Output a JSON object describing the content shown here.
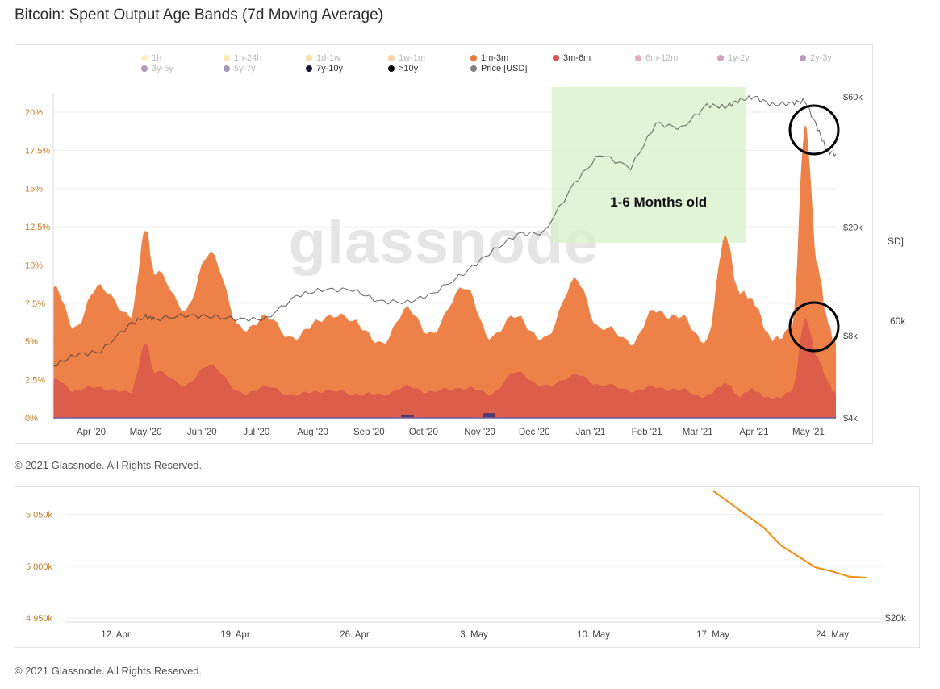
{
  "header": {
    "title": "Bitcoin: Spent Output Age Bands (7d Moving Average)"
  },
  "footer": {
    "copyright_1": "© 2021 Glassnode. All Rights Reserved.",
    "copyright_2": "© 2021 Glassnode. All Rights Reserved."
  },
  "watermark": "glassnode",
  "legend": [
    {
      "label": "1h",
      "color": "#f7e27a",
      "dim": true
    },
    {
      "label": "1h-24h",
      "color": "#f4d24a",
      "dim": true
    },
    {
      "label": "1d-1w",
      "color": "#f2b632",
      "dim": true
    },
    {
      "label": "1w-1m",
      "color": "#ef9a3a",
      "dim": true
    },
    {
      "label": "1m-3m",
      "color": "#ec7a3d",
      "dim": false
    },
    {
      "label": "3m-6m",
      "color": "#d9574c",
      "dim": false
    },
    {
      "label": "6m-12m",
      "color": "#c94760",
      "dim": true
    },
    {
      "label": "1y-2y",
      "color": "#9b2e6a",
      "dim": true
    },
    {
      "label": "2y-3y",
      "color": "#6a1f6e",
      "dim": true
    },
    {
      "label": "3y-5y",
      "color": "#55206a",
      "dim": true
    },
    {
      "label": "5y-7y",
      "color": "#2e1a55",
      "dim": true
    },
    {
      "label": "7y-10y",
      "color": "#1a1535",
      "dim": false
    },
    {
      "label": ">10y",
      "color": "#000000",
      "dim": false
    },
    {
      "label": "Price [USD]",
      "color": "#808080",
      "dim": false
    }
  ],
  "annotations": {
    "highlight_label": "1-6 Months old"
  },
  "clipped_labels": {
    "usd_fragment": "SD]",
    "price_fragment": "60k",
    "price_fragment_2": "$20k"
  },
  "chart_data": [
    {
      "type": "area",
      "title": "Bitcoin: Spent Output Age Bands (7d Moving Average)",
      "x_ticks": [
        "Apr '20",
        "May '20",
        "Jun '20",
        "Jul '20",
        "Aug '20",
        "Sep '20",
        "Oct '20",
        "Nov '20",
        "Dec '20",
        "Jan '21",
        "Feb '21",
        "Mar '21",
        "Apr '21",
        "May '21"
      ],
      "y_ticks": [
        "0%",
        "2.5%",
        "5%",
        "7.5%",
        "10%",
        "12.5%",
        "15%",
        "17.5%",
        "20%"
      ],
      "y2_ticks": [
        "$4k",
        "$8k",
        "$20k",
        "$60k"
      ],
      "ylim": [
        0,
        21
      ],
      "y2_scale": "log",
      "y2lim": [
        4000,
        60000
      ],
      "x": [
        "2020-03-20",
        "2020-04-01",
        "2020-04-15",
        "2020-05-01",
        "2020-05-10",
        "2020-05-15",
        "2020-06-01",
        "2020-06-15",
        "2020-07-01",
        "2020-07-15",
        "2020-08-01",
        "2020-08-15",
        "2020-09-01",
        "2020-09-15",
        "2020-10-01",
        "2020-10-15",
        "2020-11-01",
        "2020-11-15",
        "2020-12-01",
        "2020-12-15",
        "2021-01-01",
        "2021-01-15",
        "2021-02-01",
        "2021-02-15",
        "2021-03-01",
        "2021-03-15",
        "2021-03-25",
        "2021-04-01",
        "2021-04-10",
        "2021-04-20",
        "2021-05-01",
        "2021-05-08",
        "2021-05-15",
        "2021-05-20",
        "2021-05-25"
      ],
      "series": [
        {
          "name": "1m-3m",
          "color": "#ec7a3d",
          "values": [
            8.5,
            6.0,
            8.7,
            6.5,
            12.2,
            9.5,
            7.2,
            10.9,
            5.8,
            6.5,
            5.2,
            6.6,
            6.5,
            4.8,
            7.0,
            5.5,
            8.7,
            5.4,
            6.6,
            5.0,
            9.0,
            6.0,
            5.0,
            7.0,
            6.5,
            5.0,
            12.0,
            8.5,
            7.5,
            5.0,
            6.0,
            19.2,
            10.0,
            6.5,
            4.8
          ]
        },
        {
          "name": "3m-6m",
          "color": "#d9574c",
          "values": [
            2.5,
            1.8,
            2.0,
            1.6,
            4.8,
            3.0,
            2.2,
            3.5,
            1.6,
            2.0,
            1.5,
            1.8,
            1.6,
            1.5,
            2.0,
            1.7,
            2.0,
            1.6,
            3.0,
            2.0,
            2.8,
            2.2,
            1.8,
            2.0,
            1.8,
            1.4,
            2.3,
            1.5,
            1.8,
            1.2,
            1.8,
            6.5,
            4.0,
            2.5,
            1.5
          ]
        },
        {
          "name": "7y-10y",
          "color": "#1a1535",
          "values": [
            0,
            0,
            0,
            0,
            0,
            0,
            0,
            0,
            0,
            0,
            0,
            0,
            0,
            0,
            0.1,
            0,
            0,
            0.2,
            0,
            0,
            0,
            0,
            0,
            0,
            0,
            0,
            0,
            0,
            0,
            0,
            0,
            0,
            0,
            0,
            0
          ]
        },
        {
          "name": "Price [USD]",
          "color": "#808080",
          "axis": "right",
          "values": [
            6200,
            6800,
            7000,
            8800,
            9400,
            9200,
            9500,
            9400,
            9200,
            9200,
            11200,
            11800,
            11800,
            10700,
            10600,
            11400,
            13500,
            16000,
            18900,
            19000,
            29000,
            37000,
            33000,
            48000,
            46000,
            56000,
            55000,
            58000,
            60000,
            56000,
            57000,
            58000,
            46000,
            38000,
            37000
          ]
        }
      ],
      "annotations": [
        {
          "type": "shaded-region",
          "x_range": [
            "2020-12-15",
            "2021-04-10"
          ],
          "label": "1-6 Months old"
        },
        {
          "type": "circle",
          "at": "2021-05-15",
          "series": "Price [USD]"
        },
        {
          "type": "circle",
          "at": "2021-05-15",
          "series": "3m-6m"
        }
      ]
    },
    {
      "type": "line",
      "x_ticks": [
        "12. Apr",
        "19. Apr",
        "26. Apr",
        "3. May",
        "10. May",
        "17. May",
        "24. May"
      ],
      "y_ticks": [
        "4 950k",
        "5 000k",
        "5 050k"
      ],
      "y2_ticks": [
        "$20k"
      ],
      "ylim": [
        4950,
        5070
      ],
      "x": [
        "2021-05-17",
        "2021-05-19",
        "2021-05-20",
        "2021-05-21",
        "2021-05-23",
        "2021-05-24",
        "2021-05-25",
        "2021-05-26"
      ],
      "series": [
        {
          "name": "line",
          "color": "#f28c0f",
          "values": [
            5073,
            5049,
            5037,
            5020,
            4999,
            4995,
            4990,
            4989
          ]
        }
      ]
    }
  ]
}
